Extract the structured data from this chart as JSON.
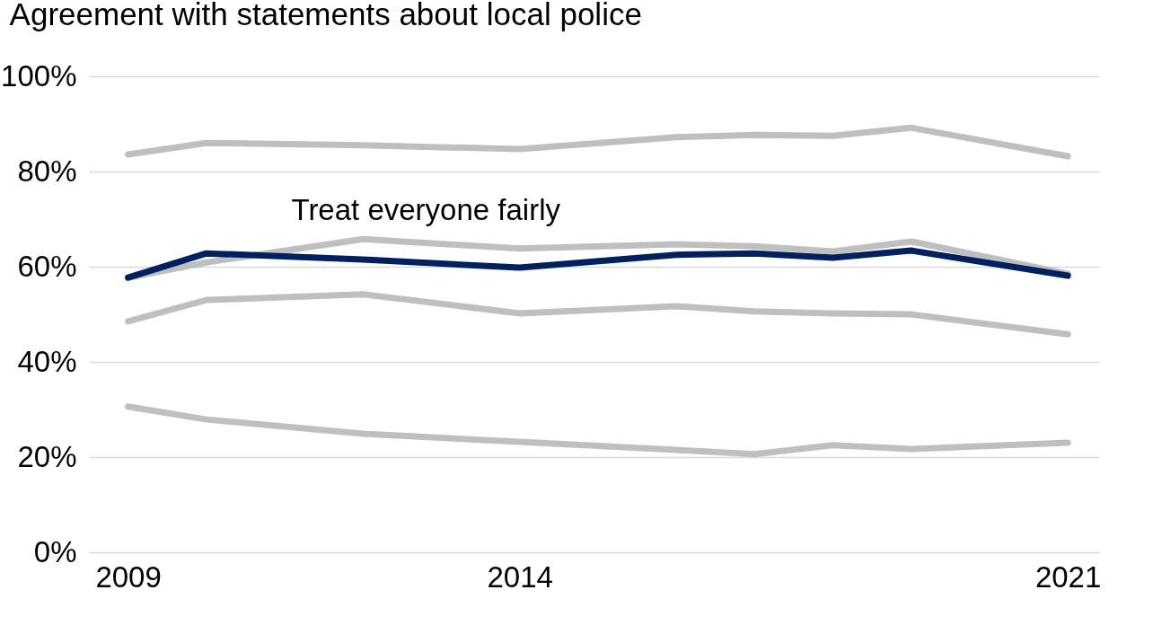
{
  "chart_data": {
    "type": "line",
    "title": "Agreement with statements about local police",
    "x": [
      2009,
      2010,
      2012,
      2014,
      2016,
      2017,
      2018,
      2019,
      2021
    ],
    "series": [
      {
        "color": "#bfbfbf",
        "values": [
          83.6,
          86.0,
          85.5,
          84.7,
          87.2,
          87.7,
          87.5,
          89.2,
          83.2
        ]
      },
      {
        "color": "#bfbfbf",
        "values": [
          57.7,
          60.9,
          65.8,
          63.8,
          64.7,
          64.3,
          63.2,
          65.3,
          58.5
        ]
      },
      {
        "color": "#bfbfbf",
        "values": [
          48.5,
          53.0,
          54.2,
          50.2,
          51.7,
          50.6,
          50.2,
          50.0,
          45.8
        ]
      },
      {
        "color": "#bfbfbf",
        "values": [
          30.6,
          27.9,
          24.9,
          23.2,
          21.5,
          20.6,
          22.5,
          21.7,
          23.0
        ]
      },
      {
        "name": "Treat everyone fairly",
        "color": "#002060",
        "values": [
          57.7,
          62.8,
          61.5,
          59.8,
          62.5,
          62.8,
          61.9,
          63.4,
          58.1
        ]
      }
    ],
    "xlim": [
      2008.5,
      2021.4
    ],
    "xticks": [
      2009,
      2014,
      2021
    ],
    "ylim": [
      0,
      100
    ],
    "yticks": [
      {
        "value": 0,
        "label": "0%"
      },
      {
        "value": 20,
        "label": "20%"
      },
      {
        "value": 40,
        "label": "40%"
      },
      {
        "value": 60,
        "label": "60%"
      },
      {
        "value": 80,
        "label": "80%"
      },
      {
        "value": 100,
        "label": "100%"
      }
    ],
    "grid": "y",
    "legend": false,
    "marker": "none",
    "line_style": "solid"
  }
}
